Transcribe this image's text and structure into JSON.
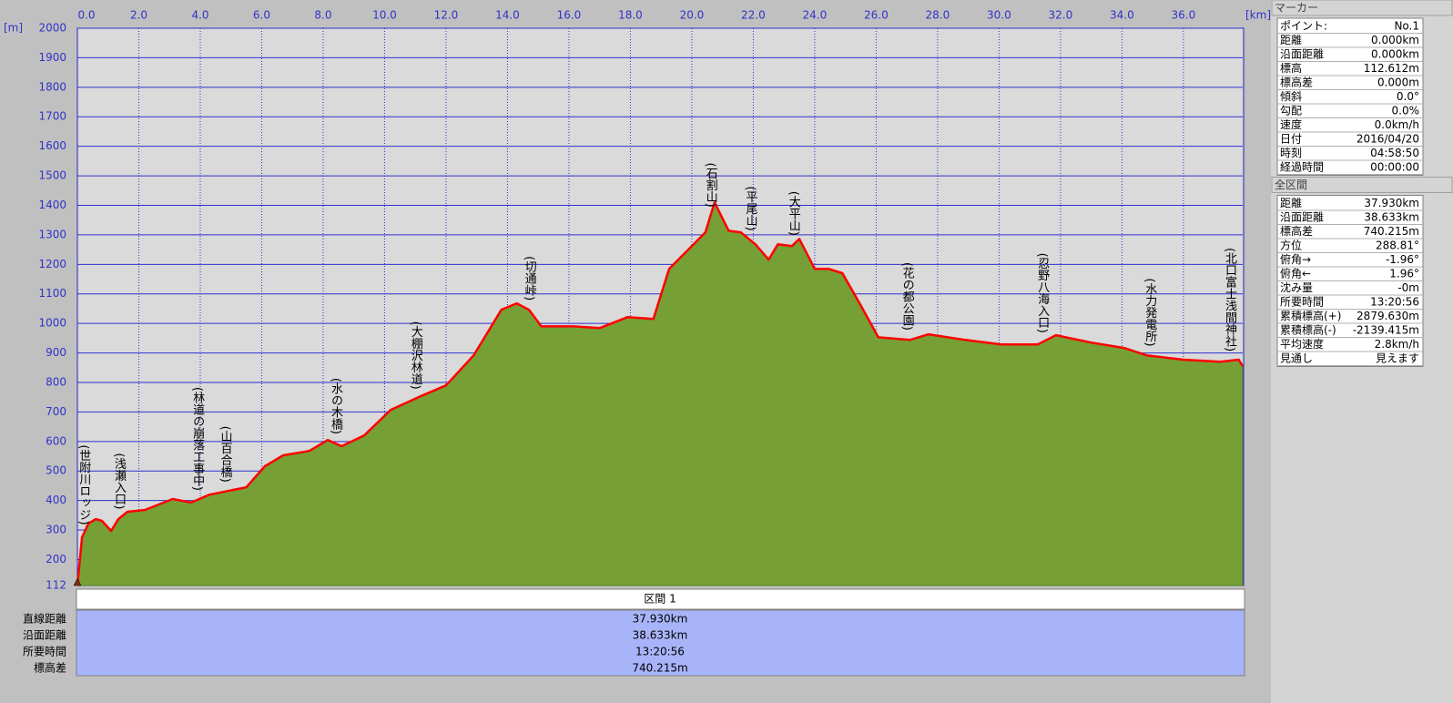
{
  "chart_data": {
    "type": "area",
    "x_unit": "[km]",
    "y_unit": "[m]",
    "x": [
      0,
      0.15,
      0.36,
      0.6,
      0.8,
      1.1,
      1.33,
      1.63,
      2.2,
      3.1,
      3.7,
      4.3,
      5.5,
      6.1,
      6.7,
      7.55,
      8.15,
      8.6,
      9.33,
      10.2,
      11.1,
      12.0,
      12.9,
      13.8,
      14.3,
      14.7,
      15.1,
      16.15,
      17.0,
      17.9,
      18.75,
      19.26,
      20.0,
      20.44,
      20.74,
      21.2,
      21.6,
      22.07,
      22.5,
      22.8,
      23.26,
      23.5,
      24.0,
      24.44,
      24.9,
      25.5,
      26.07,
      27.1,
      27.7,
      28.9,
      30.07,
      31.26,
      31.85,
      33.0,
      34.07,
      34.8,
      36.0,
      37.2,
      37.8,
      37.93
    ],
    "series": [
      {
        "color": "#ff0000",
        "values": [
          112,
          275,
          322,
          337,
          331,
          297,
          337,
          362,
          368,
          405,
          393,
          420,
          445,
          516,
          553,
          568,
          605,
          584,
          620,
          707,
          750,
          790,
          892,
          1046,
          1068,
          1046,
          990,
          990,
          984,
          1021,
          1015,
          1185,
          1262,
          1308,
          1410,
          1314,
          1308,
          1268,
          1216,
          1268,
          1262,
          1286,
          1185,
          1185,
          1170,
          1061,
          953,
          944,
          963,
          944,
          929,
          929,
          960,
          935,
          917,
          892,
          877,
          870,
          877,
          855
        ]
      }
    ],
    "fill_color": "#76a035",
    "xlim": [
      0,
      37.93
    ],
    "ylim": [
      112,
      2000
    ],
    "xticks": [
      {
        "value": 0,
        "label": "0.0"
      },
      {
        "value": 2,
        "label": "2.0"
      },
      {
        "value": 4,
        "label": "4.0"
      },
      {
        "value": 6,
        "label": "6.0"
      },
      {
        "value": 8,
        "label": "8.0"
      },
      {
        "value": 10,
        "label": "10.0"
      },
      {
        "value": 12,
        "label": "12.0"
      },
      {
        "value": 14,
        "label": "14.0"
      },
      {
        "value": 16,
        "label": "16.0"
      },
      {
        "value": 18,
        "label": "18.0"
      },
      {
        "value": 20,
        "label": "20.0"
      },
      {
        "value": 22,
        "label": "22.0"
      },
      {
        "value": 24,
        "label": "24.0"
      },
      {
        "value": 26,
        "label": "26.0"
      },
      {
        "value": 28,
        "label": "28.0"
      },
      {
        "value": 30,
        "label": "30.0"
      },
      {
        "value": 32,
        "label": "32.0"
      },
      {
        "value": 34,
        "label": "34.0"
      },
      {
        "value": 36,
        "label": "36.0"
      }
    ],
    "yticks": [
      112,
      200,
      300,
      400,
      500,
      600,
      700,
      800,
      900,
      1000,
      1100,
      1200,
      1300,
      1400,
      1500,
      1600,
      1700,
      1800,
      1900,
      2000
    ],
    "grid": true,
    "annotations": [
      {
        "text": "(世附川ロッジ)",
        "x": 0.2
      },
      {
        "text": "(浅瀬入口)",
        "x": 1.35
      },
      {
        "text": "(林道の崩落工事中)",
        "x": 3.9
      },
      {
        "text": "(山百合橋)",
        "x": 4.8
      },
      {
        "text": "(水の木橋)",
        "x": 8.4
      },
      {
        "text": "(大棚沢林道)",
        "x": 11.0
      },
      {
        "text": "(切通峠)",
        "x": 14.7
      },
      {
        "text": "(石割山)",
        "x": 20.6
      },
      {
        "text": "(平尾山)",
        "x": 21.9
      },
      {
        "text": "(大平山)",
        "x": 23.3
      },
      {
        "text": "(花の都公園)",
        "x": 27.0
      },
      {
        "text": "(忍野八海入口)",
        "x": 31.4
      },
      {
        "text": "(水力発電所)",
        "x": 34.9
      },
      {
        "text": "(北口富士浅間神社)",
        "x": 37.5
      }
    ]
  },
  "summary_table": {
    "header": "区間 1",
    "rows": [
      [
        "直線距離",
        "37.930km"
      ],
      [
        "沿面距離",
        "38.633km"
      ],
      [
        "所要時間",
        "13:20:56"
      ],
      [
        "標高差",
        "740.215m"
      ]
    ]
  },
  "marker_panel": {
    "title": "マーカー",
    "rows": [
      [
        "ポイント:",
        "No.1"
      ],
      [
        "距離",
        "0.000km"
      ],
      [
        "沿面距離",
        "0.000km"
      ],
      [
        "標高",
        "112.612m"
      ],
      [
        "標高差",
        "0.000m"
      ],
      [
        "傾斜",
        "0.0°"
      ],
      [
        "勾配",
        "0.0%"
      ],
      [
        "速度",
        "0.0km/h"
      ],
      [
        "日付",
        "2016/04/20"
      ],
      [
        "時刻",
        "04:58:50"
      ],
      [
        "経過時間",
        "00:00:00"
      ]
    ]
  },
  "total_panel": {
    "title": "全区間",
    "rows": [
      [
        "距離",
        "37.930km"
      ],
      [
        "沿面距離",
        "38.633km"
      ],
      [
        "標高差",
        "740.215m"
      ],
      [
        "方位",
        "288.81°"
      ],
      [
        "俯角→",
        "-1.96°"
      ],
      [
        "俯角←",
        "1.96°"
      ],
      [
        "沈み量",
        "-0m"
      ],
      [
        "所要時間",
        "13:20:56"
      ],
      [
        "累積標高(+)",
        "2879.630m"
      ],
      [
        "累積標高(-)",
        "-2139.415m"
      ],
      [
        "平均速度",
        "2.8km/h"
      ],
      [
        "見通し",
        "見えます"
      ]
    ]
  }
}
